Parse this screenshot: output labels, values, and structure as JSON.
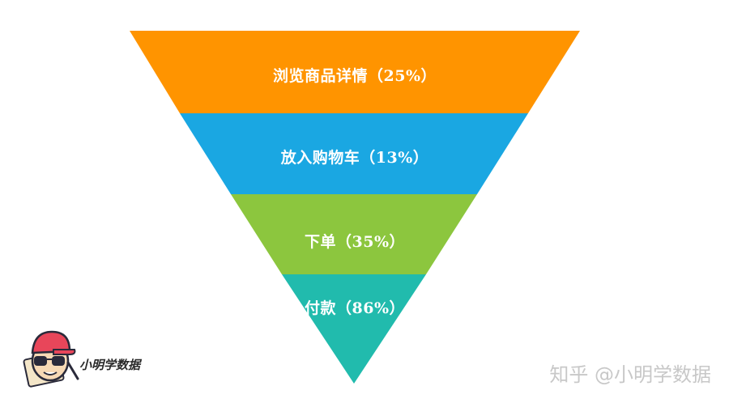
{
  "funnel": {
    "stages": [
      {
        "label": "浏览商品详情（25%）",
        "color": "#FF9400"
      },
      {
        "label": "放入购物车（13%）",
        "color": "#1AA7E2"
      },
      {
        "label": "下单（35%）",
        "color": "#8CC63E"
      },
      {
        "label": "付款（86%）",
        "color": "#21BBAD"
      }
    ]
  },
  "logo": {
    "text": "小明学数据",
    "colors": {
      "cap": "#E8465A",
      "face": "#F7D9B5",
      "outline": "#2A2A3A"
    }
  },
  "watermark": "知乎 @小明学数据"
}
